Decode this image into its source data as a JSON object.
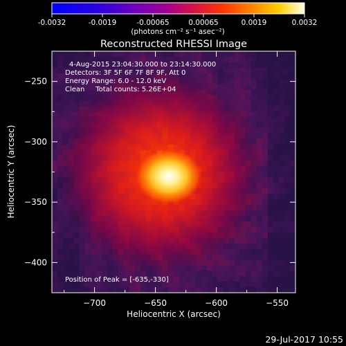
{
  "colorbar": {
    "ticks": [
      "-0.0032",
      "-0.0019",
      "-0.00065",
      "0.00065",
      "0.0019",
      "0.0032"
    ],
    "unit_label": "(photons cm⁻² s⁻¹ asec⁻²)"
  },
  "image": {
    "title": "Reconstructed RHESSI Image",
    "info": [
      "4-Aug-2015 23:04:30.000 to 23:14:30.000",
      "Detectors: 3F 5F 6F 7F 8F 9F, Att 0",
      "Energy Range: 6.0 - 12.0 keV",
      "Clean     Total counts: 5.26E+04"
    ],
    "peak_label": "Position of Peak = [-635,-330]",
    "peak": {
      "x": -635,
      "y": -330
    }
  },
  "axes": {
    "xlabel": "Heliocentric X (arcsec)",
    "ylabel": "Heliocentric Y (arcsec)",
    "x_range": [
      -735,
      -535
    ],
    "y_range": [
      -425,
      -225
    ],
    "x_ticks": [
      {
        "v": -700,
        "label": "−700"
      },
      {
        "v": -650,
        "label": "−650"
      },
      {
        "v": -600,
        "label": "−600"
      },
      {
        "v": -550,
        "label": "−550"
      }
    ],
    "y_ticks": [
      {
        "v": -250,
        "label": "−250"
      },
      {
        "v": -300,
        "label": "−300"
      },
      {
        "v": -350,
        "label": "−350"
      },
      {
        "v": -400,
        "label": "−400"
      }
    ]
  },
  "footer": {
    "timestamp": "29-Jul-2017 10:55"
  }
}
